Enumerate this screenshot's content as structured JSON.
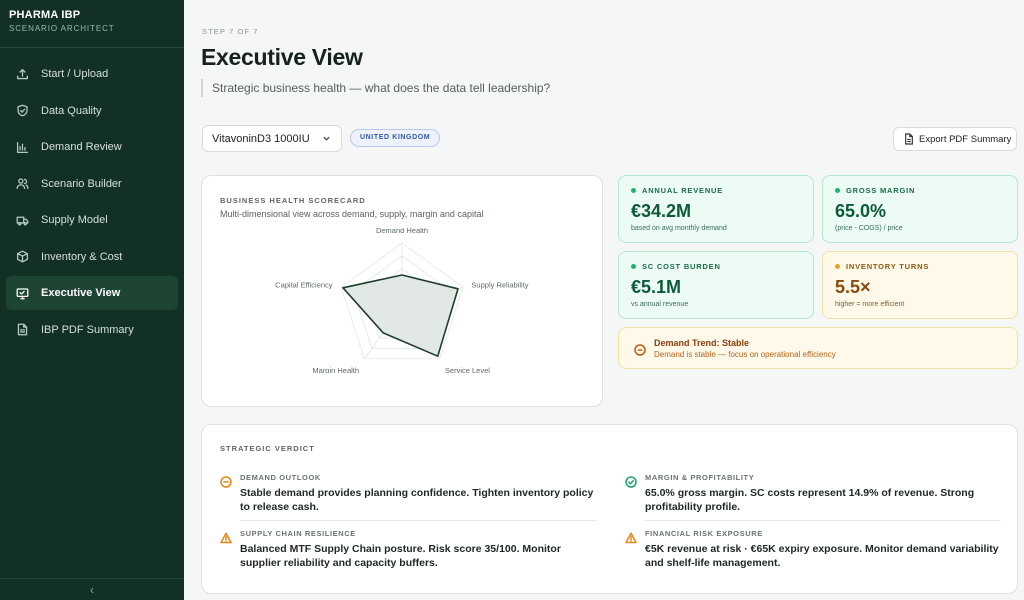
{
  "brand": {
    "title": "PHARMA IBP",
    "subtitle": "SCENARIO ARCHITECT"
  },
  "nav": [
    {
      "label": "Start / Upload",
      "icon": "upload-icon",
      "active": false
    },
    {
      "label": "Data Quality",
      "icon": "shield-check-icon",
      "active": false
    },
    {
      "label": "Demand Review",
      "icon": "bar-chart-icon",
      "active": false
    },
    {
      "label": "Scenario Builder",
      "icon": "users-icon",
      "active": false
    },
    {
      "label": "Supply Model",
      "icon": "truck-icon",
      "active": false
    },
    {
      "label": "Inventory & Cost",
      "icon": "box-icon",
      "active": false
    },
    {
      "label": "Executive View",
      "icon": "monitor-icon",
      "active": true
    },
    {
      "label": "IBP PDF Summary",
      "icon": "file-icon",
      "active": false
    }
  ],
  "collapse_glyph": "‹",
  "header": {
    "step": "STEP 7 OF 7",
    "title": "Executive View",
    "subtitle": "Strategic business health — what does the data tell leadership?"
  },
  "toolbar": {
    "product_value": "VitavoninD3 1000IU",
    "country_badge": "UNITED KINGDOM",
    "export_label": "Export PDF Summary"
  },
  "scorecard": {
    "label": "BUSINESS HEALTH SCORECARD",
    "description": "Multi-dimensional view across demand, supply, margin and capital",
    "axes": [
      {
        "name": "Demand Health",
        "value": 0.5
      },
      {
        "name": "Supply Reliability",
        "value": 0.92
      },
      {
        "name": "Service Level",
        "value": 0.95
      },
      {
        "name": "Margin Health",
        "value": 0.5
      },
      {
        "name": "Capital Efficiency",
        "value": 0.97
      }
    ],
    "fill_color": "#dde5df",
    "stroke_color": "#1e3d2d"
  },
  "kpis": {
    "revenue": {
      "label": "ANNUAL REVENUE",
      "value": "€34.2M",
      "note": "based on avg monthly demand"
    },
    "margin": {
      "label": "GROSS MARGIN",
      "value": "65.0%",
      "note": "(price - COGS) / price"
    },
    "sc_cost": {
      "label": "SC COST BURDEN",
      "value": "€5.1M",
      "note": "vs annual revenue"
    },
    "turns": {
      "label": "INVENTORY TURNS",
      "value": "5.5×",
      "note": "higher = more efficient"
    }
  },
  "trend": {
    "title": "Demand Trend: Stable",
    "description": "Demand is stable — focus on operational efficiency"
  },
  "verdict": {
    "label": "STRATEGIC VERDICT",
    "items": {
      "demand": {
        "label": "DEMAND OUTLOOK",
        "text": "Stable demand provides planning confidence. Tighten inventory policy to release cash.",
        "icon": "minus-circle-icon"
      },
      "margin": {
        "label": "MARGIN & PROFITABILITY",
        "text": "65.0% gross margin. SC costs represent 14.9% of revenue. Strong profitability profile.",
        "icon": "check-circle-icon"
      },
      "supply": {
        "label": "SUPPLY CHAIN RESILIENCE",
        "text": "Balanced MTF Supply Chain posture. Risk score 35/100. Monitor supplier reliability and capacity buffers.",
        "icon": "warning-icon"
      },
      "risk": {
        "label": "FINANCIAL RISK EXPOSURE",
        "text": "€5K revenue at risk · €65K expiry exposure. Monitor demand variability and shelf-life management.",
        "icon": "warning-icon"
      }
    }
  },
  "colors": {
    "sidebar_bg": "#123023",
    "accent_green": "#1fb473",
    "accent_amber": "#f0a323",
    "warning_orange": "#e0861a"
  }
}
